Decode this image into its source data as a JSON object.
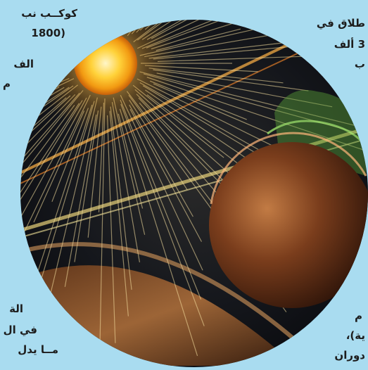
{
  "text_fragments": {
    "top_left_line1": "كوكــب نب",
    "top_left_line2": "(1800",
    "top_left_line3": "الف",
    "top_left_line4": "م",
    "top_right_line1": "طلاق في",
    "top_right_line2": "3 ألف",
    "top_right_line3": "ب",
    "bottom_left_line1": "الة",
    "bottom_left_line2": "في ال",
    "bottom_left_line3": "مــا يدل",
    "bottom_right_line1": "م",
    "bottom_right_line2": "ية)،",
    "bottom_right_line3": "دوران"
  },
  "colors": {
    "page_background": "#a9dcf0",
    "text": "#1d1d1d",
    "sun_core": "#fff1a8",
    "space": "#0d0f14",
    "planet": "#8a4a22"
  },
  "illustration": {
    "subject_icons": [
      "sun-icon",
      "planet-icon",
      "solar-wind-streaks-icon"
    ]
  }
}
